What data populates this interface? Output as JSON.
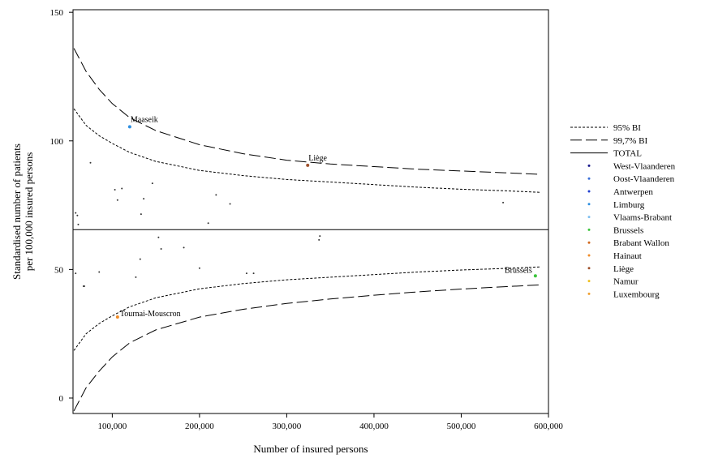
{
  "chart_data": {
    "type": "scatter",
    "title": "",
    "xlabel": "Number of insured persons",
    "ylabel_lines": [
      "Standardised number of patients",
      "per 100,000 insured persons"
    ],
    "xlim": [
      55000,
      600000
    ],
    "ylim": [
      -6,
      151
    ],
    "x_ticks": [
      100000,
      200000,
      300000,
      400000,
      500000,
      600000
    ],
    "x_tick_labels": [
      "100,000",
      "200,000",
      "300,000",
      "400,000",
      "500,000",
      "600,000"
    ],
    "y_ticks": [
      0,
      50,
      100,
      150
    ],
    "y_tick_labels": [
      "0",
      "50",
      "100",
      "150"
    ],
    "grid": false,
    "legend_position": "right",
    "total": 65.5,
    "legend": [
      {
        "label": "95% BI",
        "kind": "line",
        "style": "dotted"
      },
      {
        "label": "99,7% BI",
        "kind": "line",
        "style": "dashed"
      },
      {
        "label": "TOTAL",
        "kind": "line",
        "style": "solid"
      },
      {
        "label": "West-Vlaanderen",
        "kind": "dot",
        "color": "#1a1a8c"
      },
      {
        "label": "Oost-Vlaanderen",
        "kind": "dot",
        "color": "#3a6fd8"
      },
      {
        "label": "Antwerpen",
        "kind": "dot",
        "color": "#1f3fd0"
      },
      {
        "label": "Limburg",
        "kind": "dot",
        "color": "#2f8fe0"
      },
      {
        "label": "Vlaams-Brabant",
        "kind": "dot",
        "color": "#7fbff0"
      },
      {
        "label": "Brussels",
        "kind": "dot",
        "color": "#3cc43c"
      },
      {
        "label": "Brabant Wallon",
        "kind": "dot",
        "color": "#d2691e"
      },
      {
        "label": "Hainaut",
        "kind": "dot",
        "color": "#f08c28"
      },
      {
        "label": "Liège",
        "kind": "dot",
        "color": "#a0522d"
      },
      {
        "label": "Namur",
        "kind": "dot",
        "color": "#f0c020"
      },
      {
        "label": "Luxembourg",
        "kind": "dot",
        "color": "#f0a030"
      }
    ],
    "labeled_points": [
      {
        "label": "Maaseik",
        "x": 120000,
        "y": 105.5,
        "color": "#2f8fe0"
      },
      {
        "label": "Liège",
        "x": 324000,
        "y": 90.5,
        "color": "#a0522d"
      },
      {
        "label": "Brussels",
        "x": 585000,
        "y": 47.5,
        "color": "#3cc43c"
      },
      {
        "label": "Tournai-Mouscron",
        "x": 106000,
        "y": 31.5,
        "color": "#f08c28"
      }
    ],
    "points": [
      {
        "x": 58000,
        "y": 72
      },
      {
        "x": 60000,
        "y": 71
      },
      {
        "x": 61000,
        "y": 67.5
      },
      {
        "x": 75000,
        "y": 91.5
      },
      {
        "x": 103000,
        "y": 81
      },
      {
        "x": 106000,
        "y": 77
      },
      {
        "x": 111000,
        "y": 81.5
      },
      {
        "x": 136000,
        "y": 77.5
      },
      {
        "x": 146000,
        "y": 83.5
      },
      {
        "x": 133000,
        "y": 71.5
      },
      {
        "x": 210000,
        "y": 68
      },
      {
        "x": 219000,
        "y": 79
      },
      {
        "x": 235000,
        "y": 75.5
      },
      {
        "x": 548000,
        "y": 76
      },
      {
        "x": 338000,
        "y": 63
      },
      {
        "x": 337000,
        "y": 61.5
      },
      {
        "x": 153000,
        "y": 62.5
      },
      {
        "x": 156000,
        "y": 58
      },
      {
        "x": 182000,
        "y": 58.5
      },
      {
        "x": 132000,
        "y": 54
      },
      {
        "x": 200000,
        "y": 50.5
      },
      {
        "x": 254000,
        "y": 48.5
      },
      {
        "x": 262000,
        "y": 48.5
      },
      {
        "x": 127000,
        "y": 47
      },
      {
        "x": 58000,
        "y": 48.5
      },
      {
        "x": 67000,
        "y": 43.5
      },
      {
        "x": 68000,
        "y": 43.5
      },
      {
        "x": 85000,
        "y": 49
      }
    ],
    "ci95_upper": {
      "x": [
        56000,
        70000,
        85000,
        100000,
        120000,
        150000,
        200000,
        250000,
        300000,
        350000,
        400000,
        450000,
        500000,
        550000,
        590000
      ],
      "y": [
        112.5,
        106,
        102,
        99,
        95.5,
        92,
        88.5,
        86.5,
        85,
        84,
        83,
        82,
        81.2,
        80.6,
        80
      ]
    },
    "ci95_lower": {
      "x": [
        56000,
        70000,
        85000,
        100000,
        120000,
        150000,
        200000,
        250000,
        300000,
        350000,
        400000,
        450000,
        500000,
        550000,
        590000
      ],
      "y": [
        18.5,
        25,
        29,
        32,
        35.5,
        39,
        42.5,
        44.5,
        46,
        47,
        48,
        49,
        49.8,
        50.4,
        51
      ]
    },
    "ci997_upper": {
      "x": [
        56000,
        70000,
        85000,
        100000,
        120000,
        150000,
        200000,
        250000,
        300000,
        350000,
        400000,
        450000,
        500000,
        550000,
        590000
      ],
      "y": [
        136,
        127,
        120,
        114.5,
        109,
        104,
        98.5,
        95,
        92.5,
        91,
        90,
        89,
        88.3,
        87.6,
        87
      ]
    },
    "ci997_lower": {
      "x": [
        56000,
        70000,
        85000,
        100000,
        120000,
        150000,
        200000,
        250000,
        300000,
        350000,
        400000,
        450000,
        500000,
        550000,
        590000
      ],
      "y": [
        -5,
        4,
        10.5,
        16,
        21.5,
        26.5,
        31.5,
        34.5,
        36.8,
        38.5,
        40,
        41.3,
        42.4,
        43.3,
        44
      ]
    }
  }
}
